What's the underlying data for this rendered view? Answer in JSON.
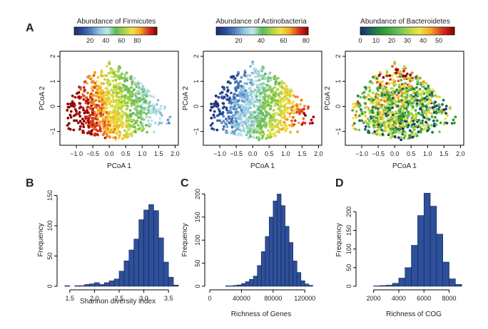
{
  "panel_labels": [
    "A",
    "B",
    "C",
    "D"
  ],
  "chart_data": [
    {
      "type": "scatter",
      "panel": "A",
      "title": "Abundance of Firmicutes",
      "xlabel": "PCoA 1",
      "ylabel": "PCoA 2",
      "xlim": [
        -1.5,
        2.1
      ],
      "ylim": [
        -1.55,
        2.2
      ],
      "xticks": [
        "−1.0",
        "−0.5",
        "0.0",
        "0.5",
        "1.0",
        "1.5",
        "2.0"
      ],
      "yticks": [
        "−1",
        "0",
        "1",
        "2"
      ],
      "colorbar": {
        "palette": [
          "#1d2b6e",
          "#2d4a9c",
          "#4f7fc1",
          "#8cc4dc",
          "#c6e6ee",
          "#5cb85c",
          "#a6d34a",
          "#f0e442",
          "#f5a623",
          "#d7301f",
          "#8b0000"
        ],
        "range": [
          0,
          105
        ],
        "ticks": [
          "20",
          "40",
          "60",
          "80"
        ]
      }
    },
    {
      "type": "scatter",
      "panel": "A",
      "title": "Abundance of Actinobacteria",
      "xlabel": "PCoA 1",
      "ylabel": "PCoA 2",
      "xlim": [
        -1.5,
        2.1
      ],
      "ylim": [
        -1.55,
        2.2
      ],
      "xticks": [
        "−1.0",
        "−0.5",
        "0.0",
        "0.5",
        "1.0",
        "1.5",
        "2.0"
      ],
      "yticks": [
        "−1",
        "0",
        "1",
        "2"
      ],
      "colorbar": {
        "palette": [
          "#1d2b6e",
          "#2d4a9c",
          "#4f7fc1",
          "#8cc4dc",
          "#c6e6ee",
          "#5cb85c",
          "#a6d34a",
          "#f0e442",
          "#f5a623",
          "#d7301f",
          "#8b0000"
        ],
        "range": [
          0,
          82
        ],
        "ticks": [
          "20",
          "40",
          "60",
          "80"
        ]
      }
    },
    {
      "type": "scatter",
      "panel": "A",
      "title": "Abundance of Bacteroidetes",
      "xlabel": "PCoA 1",
      "ylabel": "PCoA 2",
      "xlim": [
        -1.5,
        2.1
      ],
      "ylim": [
        -1.55,
        2.2
      ],
      "xticks": [
        "−1.0",
        "−0.5",
        "0.0",
        "0.5",
        "1.0",
        "1.5",
        "2.0"
      ],
      "yticks": [
        "−1",
        "0",
        "1",
        "2"
      ],
      "colorbar": {
        "palette": [
          "#1d2b6e",
          "#1a6b5a",
          "#2ca02c",
          "#5cb85c",
          "#a6d34a",
          "#f0e442",
          "#f5a623",
          "#d7301f",
          "#8b0000"
        ],
        "range": [
          0,
          60
        ],
        "ticks": [
          "0",
          "10",
          "20",
          "30",
          "40",
          "50"
        ]
      }
    },
    {
      "type": "bar",
      "panel": "B",
      "title": "",
      "xlabel": "Shannon diversity index",
      "ylabel": "Frequency",
      "xlim": [
        1.3,
        3.7
      ],
      "ylim": [
        0,
        160
      ],
      "xticks": [
        1.5,
        2.0,
        2.5,
        3.0,
        3.5
      ],
      "xtick_labels": [
        "1.5",
        "2.0",
        "2.5",
        "3.0",
        "3.5"
      ],
      "yticks": [
        0,
        50,
        100,
        150
      ],
      "bin_edges": [
        1.3,
        1.4,
        1.5,
        1.6,
        1.7,
        1.8,
        1.9,
        2.0,
        2.1,
        2.2,
        2.3,
        2.4,
        2.5,
        2.6,
        2.7,
        2.8,
        2.9,
        3.0,
        3.1,
        3.2,
        3.3,
        3.4,
        3.5,
        3.6,
        3.7
      ],
      "counts": [
        0,
        1,
        0,
        1,
        1,
        3,
        4,
        6,
        3,
        6,
        9,
        12,
        25,
        42,
        60,
        78,
        110,
        126,
        135,
        125,
        80,
        40,
        15,
        2
      ]
    },
    {
      "type": "bar",
      "panel": "C",
      "title": "",
      "xlabel": "Richness of Genes",
      "ylabel": "Frequency",
      "xlim": [
        0,
        135000
      ],
      "ylim": [
        0,
        210
      ],
      "xticks": [
        0,
        40000,
        80000,
        120000
      ],
      "xtick_labels": [
        "0",
        "40000",
        "80000",
        "120000"
      ],
      "yticks": [
        0,
        50,
        100,
        150,
        200
      ],
      "bin_edges": [
        20000,
        25000,
        30000,
        35000,
        40000,
        45000,
        50000,
        55000,
        60000,
        65000,
        70000,
        75000,
        80000,
        85000,
        90000,
        95000,
        100000,
        105000,
        110000,
        115000,
        120000,
        125000,
        130000
      ],
      "counts": [
        1,
        1,
        2,
        3,
        6,
        10,
        15,
        22,
        45,
        75,
        108,
        150,
        185,
        200,
        175,
        130,
        95,
        55,
        30,
        12,
        5,
        2
      ]
    },
    {
      "type": "bar",
      "panel": "D",
      "title": "",
      "xlabel": "Richness of COG",
      "ylabel": "Frequency",
      "xlim": [
        1000,
        9500
      ],
      "ylim": [
        0,
        260
      ],
      "xticks": [
        2000,
        4000,
        6000,
        8000
      ],
      "xtick_labels": [
        "2000",
        "4000",
        "6000",
        "8000"
      ],
      "yticks": [
        0,
        50,
        100,
        150,
        200
      ],
      "bin_edges": [
        2000,
        2500,
        3000,
        3500,
        4000,
        4500,
        5000,
        5500,
        6000,
        6500,
        7000,
        7500,
        8000,
        8500,
        9000
      ],
      "counts": [
        1,
        2,
        3,
        8,
        22,
        50,
        110,
        190,
        250,
        215,
        140,
        65,
        20,
        5
      ]
    }
  ]
}
